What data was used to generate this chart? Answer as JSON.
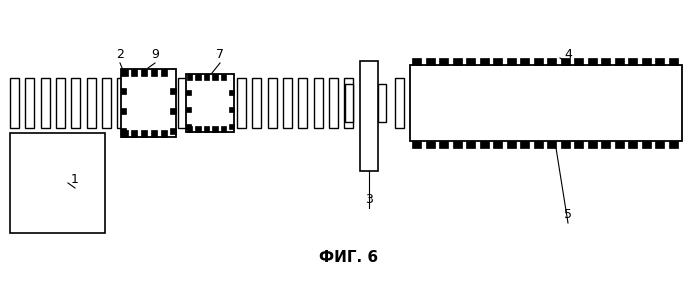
{
  "bg_color": "#ffffff",
  "line_color": "#000000",
  "fig_label": "ФИГ. 6",
  "fig_label_fontsize": 11,
  "fig_width": 6.99,
  "fig_height": 2.83,
  "dpi": 100
}
